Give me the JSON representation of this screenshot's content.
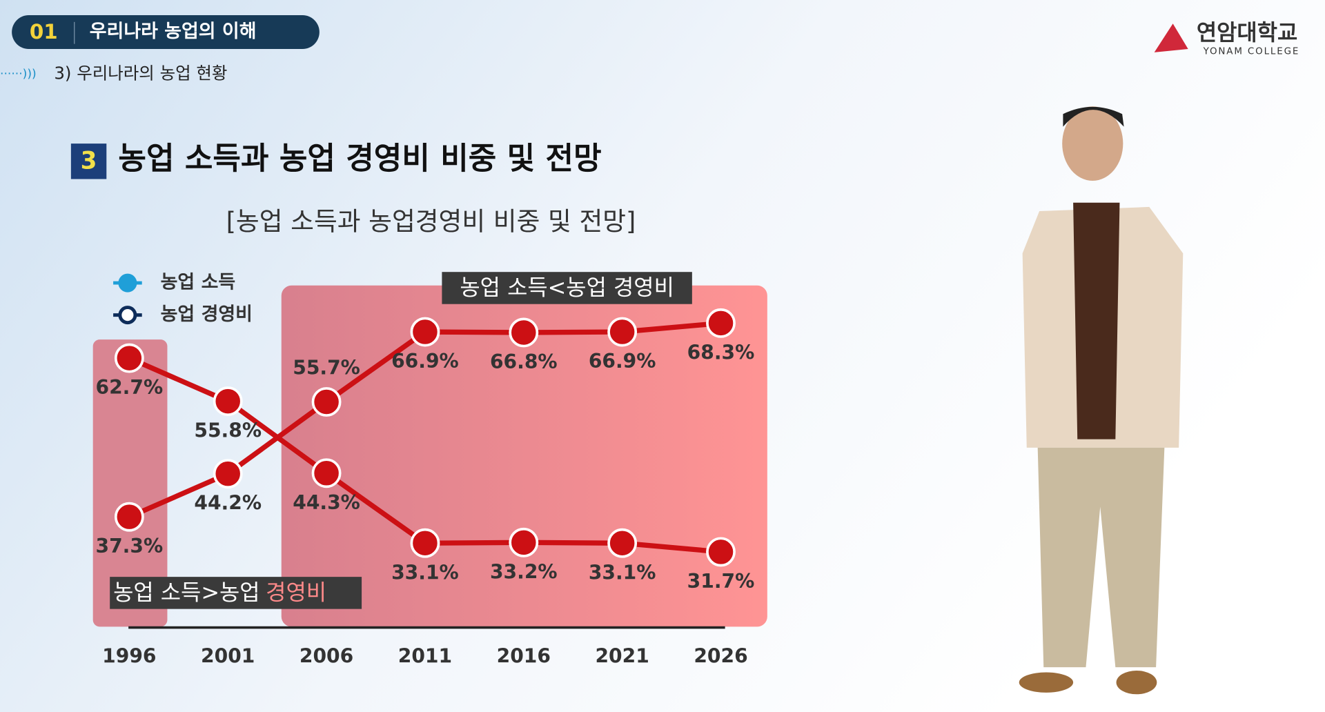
{
  "header": {
    "number": "01",
    "title": "우리나라 농업의 이해",
    "subtitle": "3) 우리나라의 농업 현황"
  },
  "logo": {
    "name": "연암대학교",
    "english": "YONAM COLLEGE"
  },
  "section": {
    "number": "3",
    "title": "농업 소득과 농업 경영비 비중 및 전망"
  },
  "chart_data": {
    "type": "line",
    "title": "[농업 소득과 농업경영비 비중 및 전망]",
    "categories": [
      "1996",
      "2001",
      "2006",
      "2011",
      "2016",
      "2021",
      "2026"
    ],
    "series": [
      {
        "name": "농업 소득",
        "color": "#cc1014",
        "values": [
          62.7,
          55.8,
          44.3,
          33.1,
          33.2,
          33.1,
          31.7
        ],
        "value_labels": [
          "62.7%",
          "55.8%",
          "44.3%",
          "33.1%",
          "33.2%",
          "33.1%",
          "31.7%"
        ]
      },
      {
        "name": "농업 경영비",
        "color": "#cc1014",
        "values": [
          37.3,
          44.2,
          55.7,
          66.9,
          66.8,
          66.9,
          68.3
        ],
        "value_labels": [
          "37.3%",
          "44.2%",
          "55.7%",
          "66.9%",
          "66.8%",
          "66.9%",
          "68.3%"
        ]
      }
    ],
    "ylim": [
      20,
      80
    ],
    "annotations": [
      {
        "text": "농업 소득<농업 경영비"
      },
      {
        "parts": [
          "농업 소득>농업",
          "경영비"
        ]
      }
    ]
  }
}
